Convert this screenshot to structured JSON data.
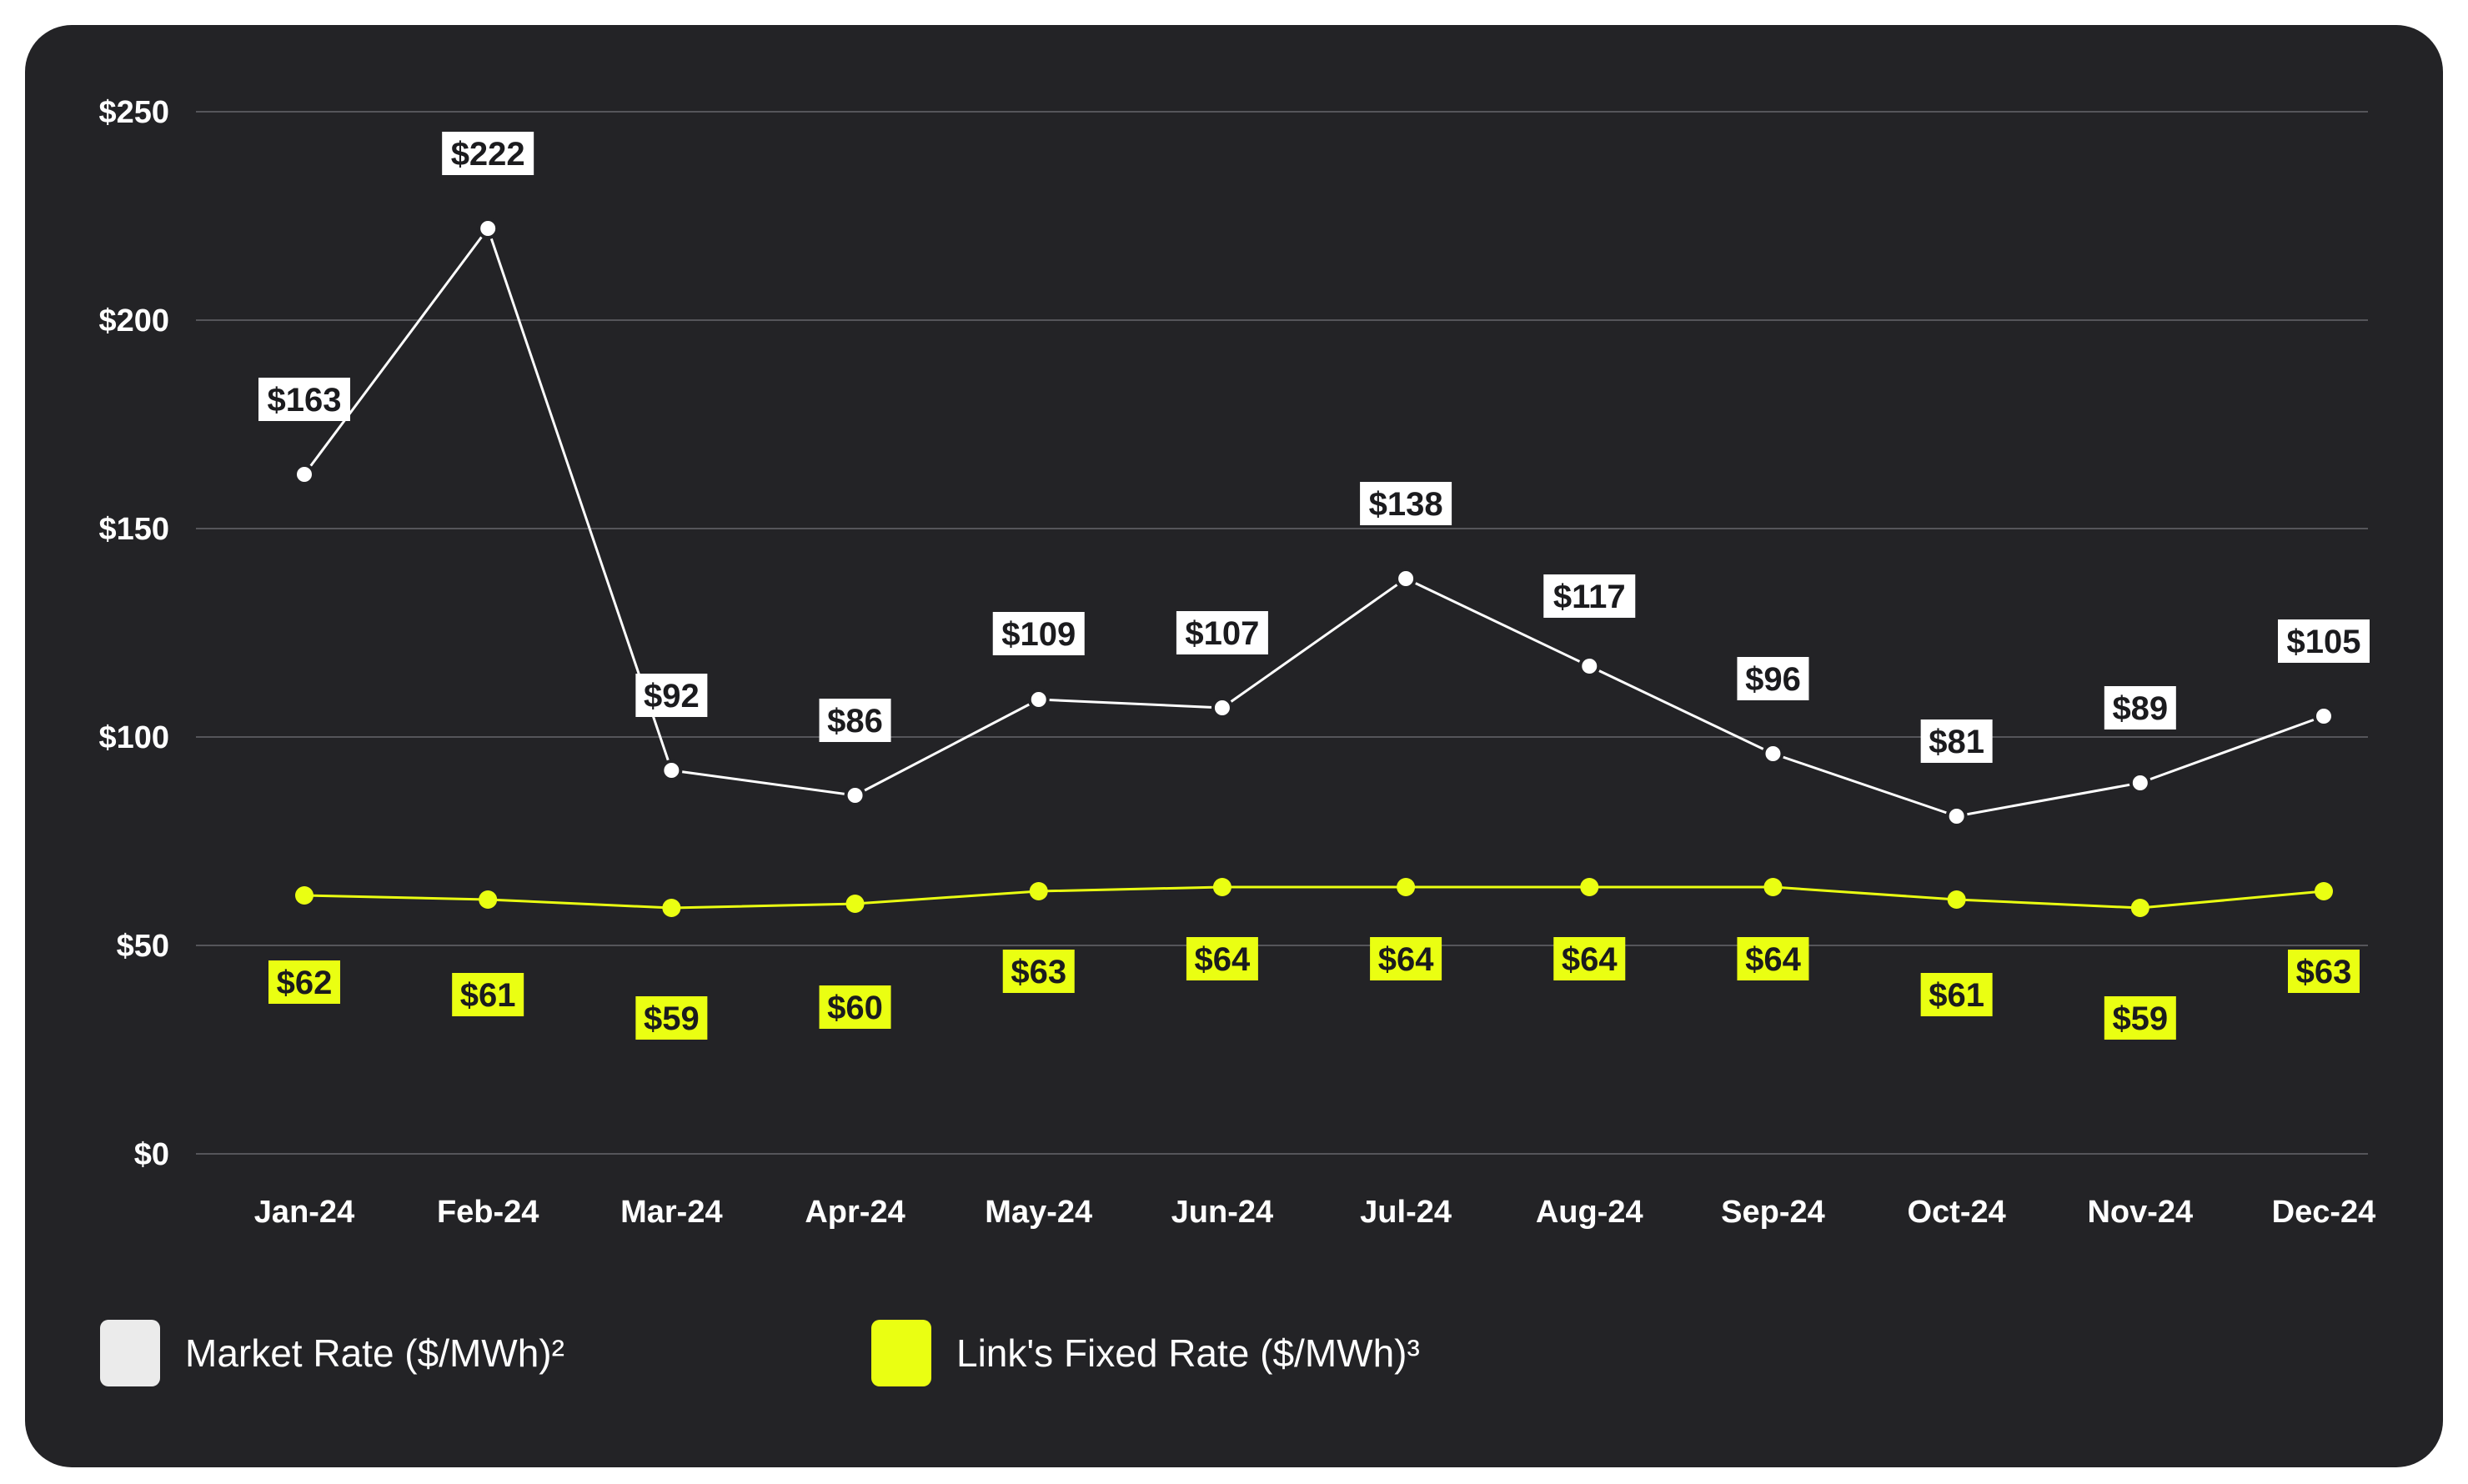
{
  "colors": {
    "background": "#232326",
    "market": "#ffffff",
    "market_label_bg": "#ffffff",
    "fixed": "#eaff12",
    "gridline": "#55555a",
    "label_text": "#1b1b1e"
  },
  "chart_data": {
    "type": "line",
    "categories": [
      "Jan-24",
      "Feb-24",
      "Mar-24",
      "Apr-24",
      "May-24",
      "Jun-24",
      "Jul-24",
      "Aug-24",
      "Sep-24",
      "Oct-24",
      "Nov-24",
      "Dec-24"
    ],
    "series": [
      {
        "name": "Market Rate ($/MWh)²",
        "values": [
          163,
          222,
          92,
          86,
          109,
          107,
          138,
          117,
          96,
          81,
          89,
          105
        ],
        "labels": [
          "$163",
          "$222",
          "$92",
          "$86",
          "$109",
          "$107",
          "$138",
          "$117",
          "$96",
          "$81",
          "$89",
          "$105"
        ],
        "color": "#ffffff"
      },
      {
        "name": "Link's Fixed Rate ($/MWh)³",
        "values": [
          62,
          61,
          59,
          60,
          63,
          64,
          64,
          64,
          64,
          61,
          59,
          63
        ],
        "labels": [
          "$62",
          "$61",
          "$59",
          "$60",
          "$63",
          "$64",
          "$64",
          "$64",
          "$64",
          "$61",
          "$59",
          "$63"
        ],
        "color": "#eaff12"
      }
    ],
    "yticks": [
      0,
      50,
      100,
      150,
      200,
      250
    ],
    "ytick_labels": [
      "$0",
      "$50",
      "$100",
      "$150",
      "$200",
      "$250"
    ],
    "ylim": [
      0,
      250
    ],
    "grid": true,
    "legend_position": "bottom-left",
    "title": "",
    "xlabel": "",
    "ylabel": ""
  },
  "legend": {
    "items": [
      {
        "label": "Market Rate ($/MWh)²",
        "color": "#ebebeb"
      },
      {
        "label": "Link's Fixed Rate ($/MWh)³",
        "color": "#eaff12"
      }
    ]
  }
}
